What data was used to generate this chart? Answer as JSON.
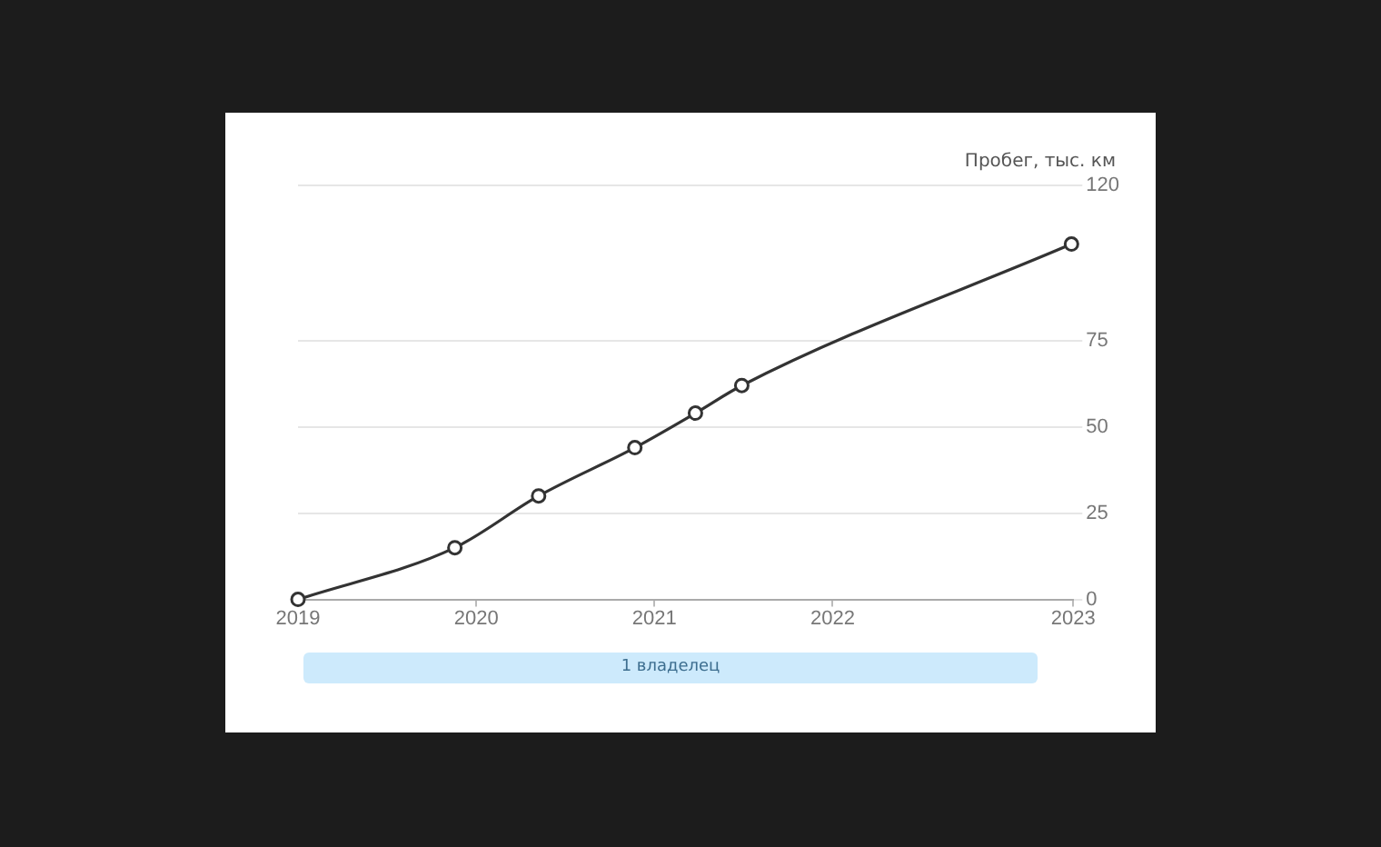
{
  "chart_data": {
    "type": "line",
    "ylabel": "Пробег, тыс. км",
    "x": [
      2019,
      2019.88,
      2020.35,
      2020.89,
      2021.23,
      2021.49,
      2023.34
    ],
    "series": [
      {
        "color": "#333333",
        "values": [
          0,
          15,
          30,
          44,
          54,
          62,
          103
        ]
      }
    ],
    "xlim": [
      2019,
      2023.35
    ],
    "xticks": [
      2019,
      2020,
      2021,
      2022,
      {
        "value": 2023.35,
        "label": "2023"
      }
    ],
    "ylim": [
      0,
      120
    ],
    "yticks": [
      0,
      25,
      50,
      75,
      120
    ],
    "annotations": [
      "1 владелец"
    ],
    "grid": "y",
    "legend": false,
    "marker": "circle",
    "line_style": "solid"
  }
}
